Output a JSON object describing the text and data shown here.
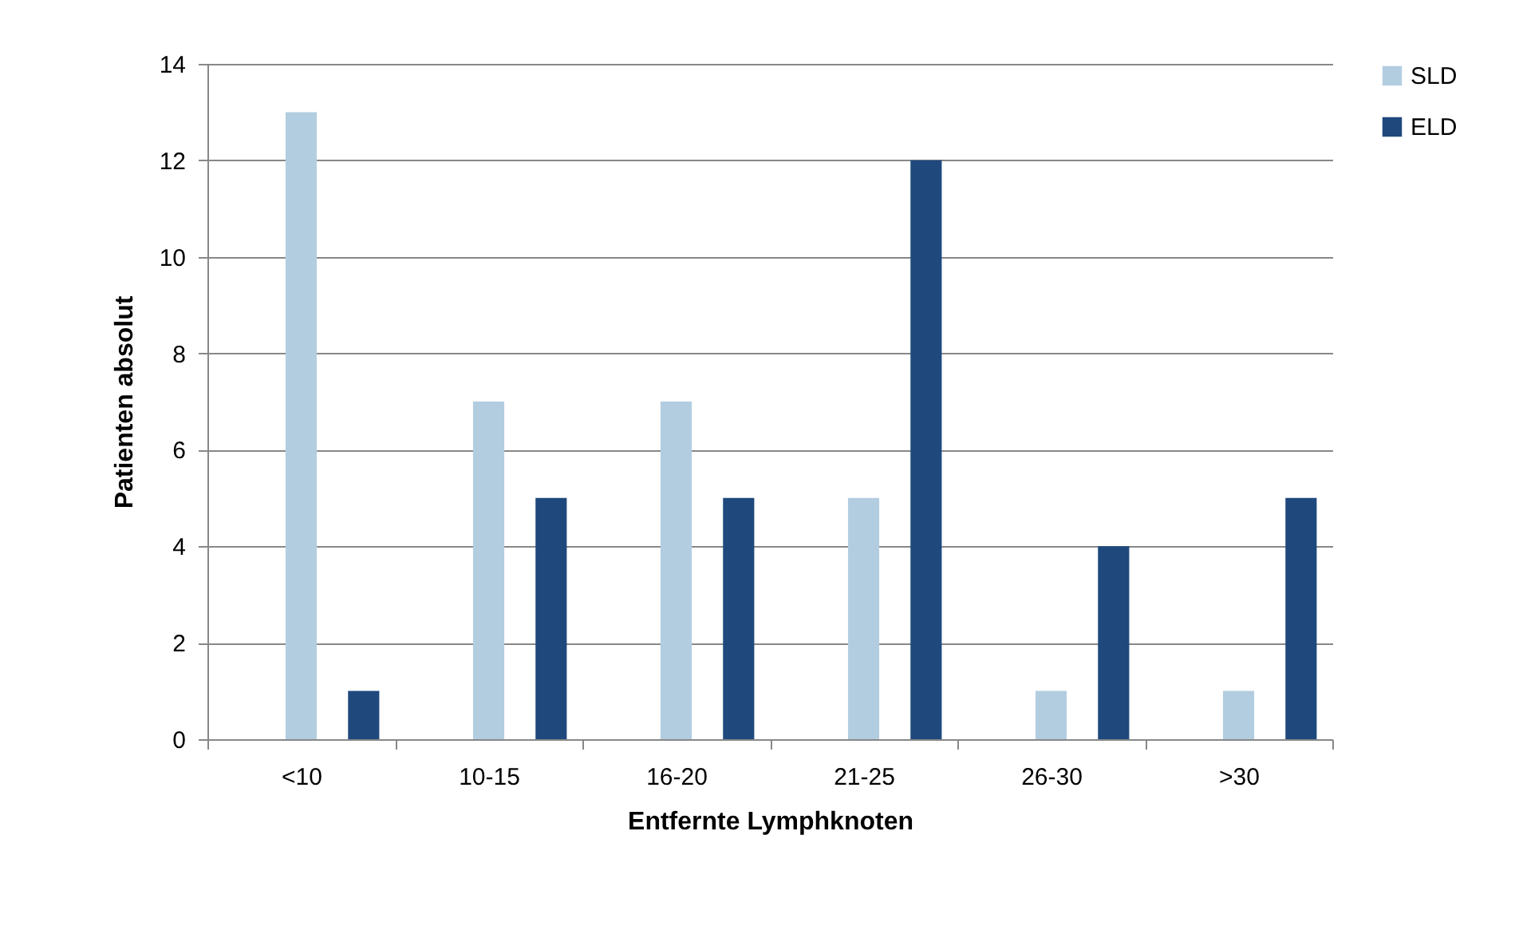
{
  "chart_data": {
    "type": "bar",
    "xlabel": "Entfernte Lymphknoten",
    "ylabel": "Patienten absolut",
    "categories": [
      "<10",
      "10-15",
      "16-20",
      "21-25",
      "26-30",
      ">30"
    ],
    "series": [
      {
        "name": "SLD",
        "color": "#b3cde0",
        "values": [
          13,
          7,
          7,
          5,
          1,
          1
        ]
      },
      {
        "name": "ELD",
        "color": "#1f497d",
        "values": [
          1,
          5,
          5,
          12,
          4,
          5
        ]
      }
    ],
    "ylim": [
      0,
      14
    ],
    "yticks": [
      0,
      2,
      4,
      6,
      8,
      10,
      12,
      14
    ],
    "grid": "y",
    "legend": "right"
  }
}
